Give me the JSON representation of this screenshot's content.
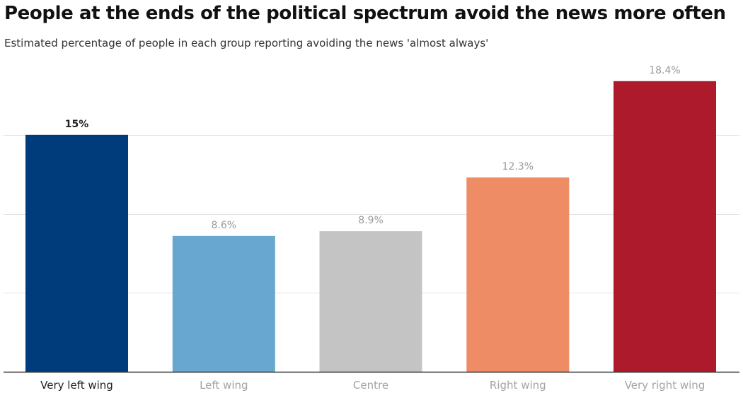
{
  "chart_data": {
    "type": "bar",
    "title": "People at the ends of the political spectrum avoid the news more often",
    "subtitle": "Estimated percentage of people in each group reporting avoiding the news 'almost always'",
    "categories": [
      "Very left wing",
      "Left wing",
      "Centre",
      "Right wing",
      "Very right wing"
    ],
    "values": [
      15,
      8.6,
      8.9,
      12.3,
      18.4
    ],
    "value_labels": [
      "15%",
      "8.6%",
      "8.9%",
      "12.3%",
      "18.4%"
    ],
    "colors": [
      "#003c7b",
      "#68a8d0",
      "#c4c4c4",
      "#ee8c66",
      "#ad1a2c"
    ],
    "highlighted_category": "Very left wing",
    "xlabel": "",
    "ylabel": "",
    "ylim": [
      0,
      20
    ],
    "gridlines": [
      5,
      10,
      15
    ],
    "grid": true,
    "legend": "none"
  }
}
